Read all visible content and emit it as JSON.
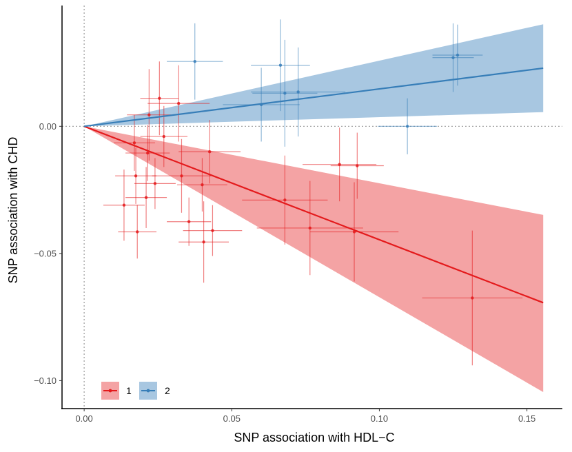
{
  "chart_data": {
    "type": "scatter",
    "title": "",
    "xlabel": "SNP association with HDL−C",
    "ylabel": "SNP association with CHD",
    "xlim": [
      -0.0075,
      0.162
    ],
    "ylim": [
      -0.111,
      0.0475
    ],
    "x_ticks": [
      0.0,
      0.05,
      0.1,
      0.15
    ],
    "x_tick_labels": [
      "0.00",
      "0.05",
      "0.10",
      "0.15"
    ],
    "y_ticks": [
      0.0,
      -0.05,
      -0.1
    ],
    "y_tick_labels": [
      "0.00",
      "−0.05",
      "−0.10"
    ],
    "reference_lines": {
      "x": 0,
      "y": 0
    },
    "legend": {
      "position": "bottom-left",
      "entries": [
        "1",
        "2"
      ]
    },
    "series": [
      {
        "name": "1",
        "color": "#E41A1C",
        "fill": "#F4A3A4",
        "fit": {
          "x_end": 0.1555,
          "slope": -0.446,
          "ci_slope_low": -0.672,
          "ci_slope_high": -0.224
        },
        "points": [
          {
            "x": 0.0135,
            "y": -0.031,
            "xerr": 0.007,
            "yerr": 0.014
          },
          {
            "x": 0.017,
            "y": -0.0065,
            "xerr": 0.007,
            "yerr": 0.011
          },
          {
            "x": 0.0175,
            "y": -0.0195,
            "xerr": 0.007,
            "yerr": 0.011
          },
          {
            "x": 0.018,
            "y": -0.0415,
            "xerr": 0.0065,
            "yerr": 0.0105
          },
          {
            "x": 0.021,
            "y": -0.028,
            "xerr": 0.007,
            "yerr": 0.012
          },
          {
            "x": 0.022,
            "y": 0.0045,
            "xerr": 0.0075,
            "yerr": 0.018
          },
          {
            "x": 0.0215,
            "y": -0.0105,
            "xerr": 0.0075,
            "yerr": 0.011
          },
          {
            "x": 0.024,
            "y": -0.0225,
            "xerr": 0.007,
            "yerr": 0.01
          },
          {
            "x": 0.0255,
            "y": 0.011,
            "xerr": 0.0065,
            "yerr": 0.0145
          },
          {
            "x": 0.027,
            "y": -0.004,
            "xerr": 0.008,
            "yerr": 0.012
          },
          {
            "x": 0.032,
            "y": 0.009,
            "xerr": 0.0105,
            "yerr": 0.015
          },
          {
            "x": 0.033,
            "y": -0.0195,
            "xerr": 0.01,
            "yerr": 0.0145
          },
          {
            "x": 0.0355,
            "y": -0.0375,
            "xerr": 0.0075,
            "yerr": 0.0095
          },
          {
            "x": 0.04,
            "y": -0.023,
            "xerr": 0.0085,
            "yerr": 0.0105
          },
          {
            "x": 0.0405,
            "y": -0.0455,
            "xerr": 0.0085,
            "yerr": 0.016
          },
          {
            "x": 0.0425,
            "y": -0.01,
            "xerr": 0.0105,
            "yerr": 0.0125
          },
          {
            "x": 0.0435,
            "y": -0.041,
            "xerr": 0.01,
            "yerr": 0.01
          },
          {
            "x": 0.068,
            "y": -0.029,
            "xerr": 0.0145,
            "yerr": 0.0175
          },
          {
            "x": 0.0765,
            "y": -0.04,
            "xerr": 0.018,
            "yerr": 0.0185
          },
          {
            "x": 0.0865,
            "y": -0.015,
            "xerr": 0.0125,
            "yerr": 0.0145
          },
          {
            "x": 0.0915,
            "y": -0.0415,
            "xerr": 0.015,
            "yerr": 0.0195
          },
          {
            "x": 0.0925,
            "y": -0.0155,
            "xerr": 0.009,
            "yerr": 0.013
          },
          {
            "x": 0.1315,
            "y": -0.0675,
            "xerr": 0.017,
            "yerr": 0.0265
          }
        ]
      },
      {
        "name": "2",
        "color": "#377EB8",
        "fill": "#A8C7E1",
        "fit": {
          "x_end": 0.1555,
          "slope": 0.147,
          "ci_slope_low": 0.036,
          "ci_slope_high": 0.258
        },
        "points": [
          {
            "x": 0.0375,
            "y": 0.0255,
            "xerr": 0.0095,
            "yerr": 0.015
          },
          {
            "x": 0.06,
            "y": 0.0085,
            "xerr": 0.013,
            "yerr": 0.0145
          },
          {
            "x": 0.0665,
            "y": 0.024,
            "xerr": 0.01,
            "yerr": 0.018
          },
          {
            "x": 0.068,
            "y": 0.013,
            "xerr": 0.011,
            "yerr": 0.021
          },
          {
            "x": 0.0725,
            "y": 0.0135,
            "xerr": 0.016,
            "yerr": 0.0175
          },
          {
            "x": 0.1095,
            "y": 0.0,
            "xerr": 0.01,
            "yerr": 0.011
          },
          {
            "x": 0.125,
            "y": 0.027,
            "xerr": 0.007,
            "yerr": 0.0135
          },
          {
            "x": 0.1265,
            "y": 0.028,
            "xerr": 0.0085,
            "yerr": 0.012
          }
        ]
      }
    ]
  }
}
